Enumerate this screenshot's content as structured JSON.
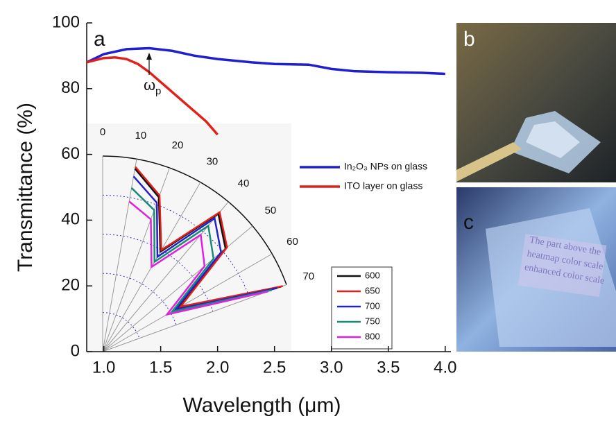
{
  "panel_labels": [
    "a",
    "b",
    "c"
  ],
  "photo_text": [
    "The part above the",
    "heatmap color scale",
    "enhanced color scale"
  ],
  "chart_data": [
    {
      "type": "line",
      "xlabel": "Wavelength (μm)",
      "ylabel": "Transmittance (%)",
      "annotation": {
        "text": "ω",
        "subscript": "p"
      },
      "xlim": [
        0.85,
        4.05
      ],
      "ylim": [
        0,
        100
      ],
      "xticks": [
        {
          "value": 1,
          "label": "1.0"
        },
        1.5,
        {
          "value": 2,
          "label": "2.0"
        },
        2.5,
        {
          "value": 3,
          "label": "3.0"
        },
        3.5,
        {
          "value": 4,
          "label": "4.0"
        }
      ],
      "yticks": [
        0,
        20,
        40,
        60,
        80,
        100
      ],
      "series": [
        {
          "name": "In₂O₃ NPs on glass",
          "color": "#1f1fd0",
          "x": [
            0.85,
            1.0,
            1.2,
            1.4,
            1.6,
            1.8,
            2.0,
            2.3,
            2.5,
            2.8,
            3.0,
            3.2,
            3.5,
            3.8,
            4.0
          ],
          "values": [
            88,
            90.5,
            92,
            92.3,
            91.5,
            90,
            89,
            88,
            87.5,
            87.3,
            86,
            85.3,
            85,
            84.8,
            84.5
          ]
        },
        {
          "name": "ITO layer on glass",
          "color": "#e0201a",
          "x": [
            0.85,
            1.0,
            1.1,
            1.2,
            1.3,
            1.4,
            1.5,
            1.6,
            1.7,
            1.8,
            1.9,
            2.0
          ],
          "values": [
            88,
            89.3,
            89.5,
            89,
            87.5,
            85,
            82,
            79,
            76,
            73,
            70,
            66
          ]
        }
      ]
    },
    {
      "type": "polar",
      "thetalim": [
        0,
        70
      ],
      "rlim": [
        0,
        1
      ],
      "thetaticks": [
        0,
        10,
        20,
        30,
        40,
        50,
        60,
        70
      ],
      "rgrid": [
        0.2,
        0.4,
        0.6,
        0.8
      ],
      "theta": [
        10,
        20,
        30,
        40,
        50,
        60,
        70
      ],
      "series": [
        {
          "name": "600",
          "color": "#111111",
          "values": [
            0.95,
            0.84,
            0.59,
            0.92,
            0.82,
            0.45,
            0.97
          ]
        },
        {
          "name": "650",
          "color": "#e0201a",
          "values": [
            0.96,
            0.85,
            0.6,
            0.93,
            0.83,
            0.46,
            0.98
          ]
        },
        {
          "name": "700",
          "color": "#2222cc",
          "values": [
            0.91,
            0.81,
            0.56,
            0.89,
            0.79,
            0.43,
            0.95
          ]
        },
        {
          "name": "750",
          "color": "#1a8a78",
          "values": [
            0.85,
            0.77,
            0.53,
            0.84,
            0.74,
            0.41,
            0.92
          ]
        },
        {
          "name": "800",
          "color": "#e020e0",
          "values": [
            0.78,
            0.72,
            0.5,
            0.78,
            0.68,
            0.38,
            0.9
          ]
        }
      ]
    }
  ]
}
